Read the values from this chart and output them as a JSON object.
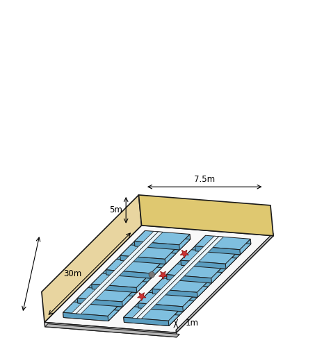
{
  "fig_width": 4.77,
  "fig_height": 5.0,
  "dpi": 100,
  "bg_color": "#ffffff",
  "wall_color_left": "#e8d5a0",
  "wall_color_top": "#dfc870",
  "wall_color_right": "#c8c8c8",
  "floor_color": "#f8f8f8",
  "bed_fill_color": "#7fbfdf",
  "bed_top_color": "#a8d4ea",
  "bed_front_color": "#5a9dc0",
  "bed_edge_color": "#1a1a1a",
  "star_color": "#cc3333",
  "dot_color": "#666666",
  "label_5m": "5m",
  "label_75m": "7.5m",
  "label_30m": "30m",
  "label_1m": "1m"
}
